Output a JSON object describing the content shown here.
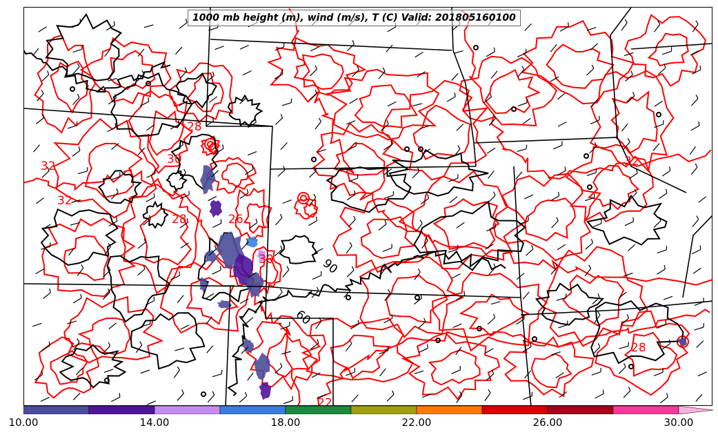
{
  "title": "1000 mb height (m), wind (m/s), T (C) Valid: 201805160100",
  "contour_labels": {
    "temperature": [
      "28",
      "30",
      "32",
      "28",
      "32",
      "30",
      "28",
      "22",
      "26",
      "32"
    ],
    "height": [
      "90",
      "60"
    ]
  },
  "colorbar": {
    "bins": [
      {
        "from": 10,
        "to": 12,
        "color": "#4b4c9a"
      },
      {
        "from": 12,
        "to": 14,
        "color": "#4f149a"
      },
      {
        "from": 14,
        "to": 16,
        "color": "#c48cf2"
      },
      {
        "from": 16,
        "to": 18,
        "color": "#3b7de0"
      },
      {
        "from": 18,
        "to": 20,
        "color": "#1e8a3e"
      },
      {
        "from": 20,
        "to": 22,
        "color": "#a0a015"
      },
      {
        "from": 22,
        "to": 24,
        "color": "#ff7a00"
      },
      {
        "from": 24,
        "to": 26,
        "color": "#d60000"
      },
      {
        "from": 26,
        "to": 28,
        "color": "#a4001c"
      },
      {
        "from": 28,
        "to": 30,
        "color": "#f03c9a"
      }
    ],
    "overflow_color": "#ffb0e0",
    "tick_labels": [
      "10.00",
      "14.00",
      "18.00",
      "22.00",
      "26.00",
      "30.00"
    ]
  },
  "colors": {
    "temperature_contour": "#ff0000",
    "height_contour": "#000000",
    "state_border": "#000000",
    "wind_barb": "#000000"
  }
}
